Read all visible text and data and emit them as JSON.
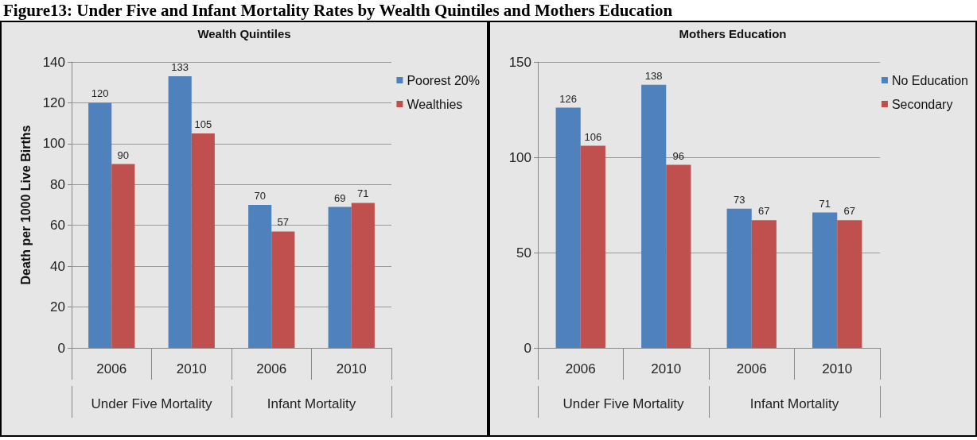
{
  "chart_data": [
    {
      "type": "bar",
      "title": "Figure13: Under Five and Infant Mortality Rates by Wealth Quintiles and Mothers Education",
      "subtitle": "Wealth Quintiles",
      "ylabel": "Death per 1000 Live Births",
      "categories": [
        "2006",
        "2010",
        "2006",
        "2010"
      ],
      "annotations": [
        "Under Five Mortality",
        "Infant Mortality"
      ],
      "series": [
        {
          "name": "Poorest 20%",
          "color": "#4f81bd",
          "values": [
            120,
            133,
            70,
            69
          ]
        },
        {
          "name": "Wealthies",
          "color": "#c0504d",
          "values": [
            90,
            105,
            57,
            71
          ]
        }
      ],
      "ylim": [
        0,
        140
      ],
      "yticks": [
        0,
        20,
        40,
        60,
        80,
        100,
        120,
        140
      ],
      "grid": "y",
      "legend": "top right",
      "data_labels": true
    },
    {
      "type": "bar",
      "title": "Mothers Education",
      "categories": [
        "2006",
        "2010",
        "2006",
        "2010"
      ],
      "annotations": [
        "Under Five Mortality",
        "Infant Mortality"
      ],
      "series": [
        {
          "name": "No Education",
          "color": "#4f81bd",
          "values": [
            126,
            138,
            73,
            71
          ]
        },
        {
          "name": "Secondary",
          "color": "#c0504d",
          "values": [
            106,
            96,
            67,
            67
          ]
        }
      ],
      "ylim": [
        0,
        150
      ],
      "yticks": [
        0,
        50,
        100,
        150
      ],
      "grid": "y",
      "legend": "top right",
      "data_labels": true
    }
  ]
}
